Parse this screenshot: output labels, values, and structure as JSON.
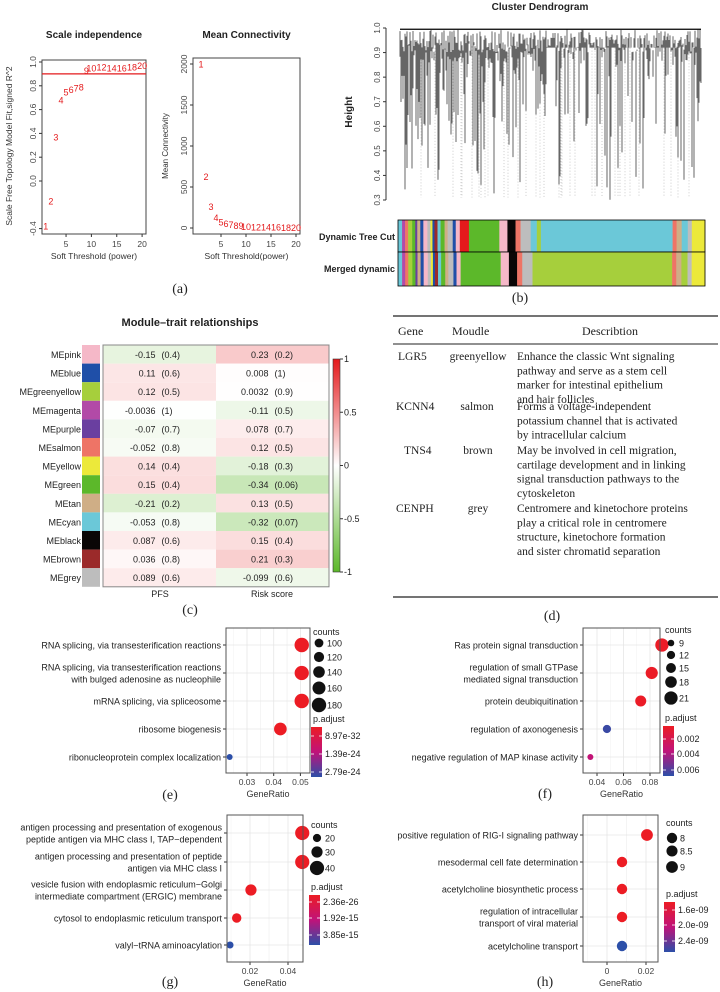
{
  "panel_labels": {
    "a": "(a)",
    "b": "(b)",
    "c": "(c)",
    "d": "(d)",
    "e": "(e)",
    "f": "(f)",
    "g": "(g)",
    "h": "(h)"
  },
  "chart_data": [
    {
      "id": "a1",
      "type": "scatter",
      "title": "Scale independence",
      "xlabel": "Soft Threshold (power)",
      "ylabel": "Scale Free Topology Model Fit,signed R^2",
      "xlim": [
        1,
        20.5
      ],
      "ylim": [
        -0.4,
        1.0
      ],
      "xticks": [
        "5",
        "10",
        "15",
        "20"
      ],
      "yticks": [
        "-0.4",
        "0.0",
        "0.2",
        "0.4",
        "0.6",
        "0.8",
        "1.0"
      ],
      "hline": 0.9,
      "color": "#e41a1c",
      "powers": [
        "1",
        "2",
        "3",
        "4",
        "5",
        "6",
        "7",
        "8",
        "9",
        "10",
        "12",
        "14",
        "16",
        "18",
        "20"
      ],
      "values": [
        -0.38,
        -0.17,
        0.37,
        0.68,
        0.75,
        0.77,
        0.78,
        0.79,
        0.93,
        0.95,
        0.96,
        0.95,
        0.95,
        0.96,
        0.97
      ]
    },
    {
      "id": "a2",
      "type": "scatter",
      "title": "Mean Connectivity",
      "xlabel": "Soft Threshold(power)",
      "ylabel": "Mean Connectivity",
      "xlim": [
        1,
        20.5
      ],
      "ylim": [
        0,
        2000
      ],
      "xticks": [
        "5",
        "10",
        "15",
        "20"
      ],
      "yticks": [
        "0",
        "500",
        "1000",
        "1500",
        "2000"
      ],
      "color": "#e41a1c",
      "powers": [
        "1",
        "2",
        "3",
        "4",
        "5",
        "6",
        "7",
        "8",
        "9",
        "10",
        "12",
        "14",
        "16",
        "18",
        "20"
      ],
      "values": [
        2000,
        630,
        260,
        130,
        75,
        55,
        40,
        32,
        28,
        20,
        15,
        12,
        10,
        8,
        6
      ]
    },
    {
      "id": "b",
      "type": "dendrogram",
      "title": "Cluster Dendrogram",
      "ylabel": "Height",
      "ylim": [
        0.3,
        1.0
      ],
      "yticks": [
        "0.3",
        "0.4",
        "0.5",
        "0.6",
        "0.7",
        "0.8",
        "0.9",
        "1.0"
      ],
      "strips": [
        "Dynamic Tree Cut",
        "Merged dynamic"
      ]
    },
    {
      "id": "c",
      "type": "heatmap",
      "title": "Module–trait relationships",
      "columns": [
        "PFS",
        "Risk score"
      ],
      "colorbar_ticks": [
        "1",
        "0.5",
        "0",
        "-0.5",
        "-1"
      ],
      "colorbar_colors": {
        "positive": "#e41a1c",
        "zero": "#ffffff",
        "negative": "#5cb82a"
      },
      "rows": [
        {
          "module": "MEpink",
          "color": "#f5b8c8",
          "cells": [
            [
              -0.15,
              "-0.15",
              "(0.4)"
            ],
            [
              0.23,
              "0.23",
              "(0.2)"
            ]
          ]
        },
        {
          "module": "MEblue",
          "color": "#1f4fa8",
          "cells": [
            [
              0.11,
              "0.11",
              "(0.6)"
            ],
            [
              0.008,
              "0.008",
              "(1)"
            ]
          ]
        },
        {
          "module": "MEgreenyellow",
          "color": "#a6cf3c",
          "cells": [
            [
              0.12,
              "0.12",
              "(0.5)"
            ],
            [
              0.0032,
              "0.0032",
              "(0.9)"
            ]
          ]
        },
        {
          "module": "MEmagenta",
          "color": "#b24aa7",
          "cells": [
            [
              -0.0036,
              "-0.0036",
              "(1)"
            ],
            [
              -0.11,
              "-0.11",
              "(0.5)"
            ]
          ]
        },
        {
          "module": "MEpurple",
          "color": "#6a3fa0",
          "cells": [
            [
              -0.07,
              "-0.07",
              "(0.7)"
            ],
            [
              0.078,
              "0.078",
              "(0.7)"
            ]
          ]
        },
        {
          "module": "MEsalmon",
          "color": "#ee7466",
          "cells": [
            [
              -0.052,
              "-0.052",
              "(0.8)"
            ],
            [
              0.12,
              "0.12",
              "(0.5)"
            ]
          ]
        },
        {
          "module": "MEyellow",
          "color": "#ece93a",
          "cells": [
            [
              0.14,
              "0.14",
              "(0.4)"
            ],
            [
              -0.18,
              "-0.18",
              "(0.3)"
            ]
          ]
        },
        {
          "module": "MEgreen",
          "color": "#5cb82a",
          "cells": [
            [
              0.15,
              "0.15",
              "(0.4)"
            ],
            [
              -0.34,
              "-0.34",
              "(0.06)"
            ]
          ]
        },
        {
          "module": "MEtan",
          "color": "#cfae86",
          "cells": [
            [
              -0.21,
              "-0.21",
              "(0.2)"
            ],
            [
              0.13,
              "0.13",
              "(0.5)"
            ]
          ]
        },
        {
          "module": "MEcyan",
          "color": "#6bc8d8",
          "cells": [
            [
              -0.053,
              "-0.053",
              "(0.8)"
            ],
            [
              -0.32,
              "-0.32",
              "(0.07)"
            ]
          ]
        },
        {
          "module": "MEblack",
          "color": "#0a0606",
          "cells": [
            [
              0.087,
              "0.087",
              "(0.6)"
            ],
            [
              0.15,
              "0.15",
              "(0.4)"
            ]
          ]
        },
        {
          "module": "MEbrown",
          "color": "#9b2a2a",
          "cells": [
            [
              0.036,
              "0.036",
              "(0.8)"
            ],
            [
              0.21,
              "0.21",
              "(0.3)"
            ]
          ]
        },
        {
          "module": "MEgrey",
          "color": "#bdbdbd",
          "cells": [
            [
              0.089,
              "0.089",
              "(0.6)"
            ],
            [
              -0.099,
              "-0.099",
              "(0.6)"
            ]
          ]
        }
      ]
    },
    {
      "id": "d",
      "type": "table",
      "headers": [
        "Gene",
        "Moudle",
        "Describtion"
      ],
      "rows": [
        {
          "gene": "LGR5",
          "module": "greenyellow",
          "desc": [
            "Enhance the classic Wnt signaling",
            "pathway and serve as a stem cell",
            "marker for intestinal epithelium",
            "and hair follicles"
          ]
        },
        {
          "gene": "KCNN4",
          "module": "salmon",
          "desc": [
            "Forms a voltage-independent",
            "potassium channel that is activated",
            "by intracellular calcium"
          ]
        },
        {
          "gene": "TNS4",
          "module": "brown",
          "desc": [
            "May be involved in cell migration,",
            "cartilage development and in linking",
            "signal transduction pathways to the",
            "cytoskeleton"
          ]
        },
        {
          "gene": "CENPH",
          "module": "grey",
          "desc": [
            "Centromere and kinetochore proteins",
            "play a critical role in centromere",
            "structure, kinetochore formation",
            "and sister chromatid separation"
          ]
        }
      ]
    },
    {
      "id": "e",
      "type": "scatter",
      "xlabel": "GeneRatio",
      "xticks": [
        0.03,
        0.04,
        0.05
      ],
      "xtick_labels": [
        "0.03",
        "0.04",
        "0.05"
      ],
      "size_title": "counts",
      "size_legend": [
        "100",
        "120",
        "140",
        "160",
        "180"
      ],
      "size_values": [
        100,
        120,
        140,
        160,
        180
      ],
      "color_title": "p.adjust",
      "color_legend": [
        "8.97e-32",
        "1.39e-24",
        "2.79e-24"
      ],
      "color_range": [
        8.97e-32,
        2.79e-24
      ],
      "terms": [
        {
          "label": [
            "RNA splicing, via transesterification reactions"
          ],
          "x": 0.0505,
          "count": 180,
          "p": 8.97e-32
        },
        {
          "label": [
            "RNA splicing, via transesterification reactions",
            "with bulged adenosine as nucleophile"
          ],
          "x": 0.0505,
          "count": 178,
          "p": 8.97e-32
        },
        {
          "label": [
            "mRNA splicing, via spliceosome"
          ],
          "x": 0.0505,
          "count": 180,
          "p": 8.97e-32
        },
        {
          "label": [
            "ribosome biogenesis"
          ],
          "x": 0.0425,
          "count": 155,
          "p": 8.97e-32
        },
        {
          "label": [
            "ribonucleoprotein complex localization"
          ],
          "x": 0.0235,
          "count": 60,
          "p": 2.79e-24
        }
      ]
    },
    {
      "id": "f",
      "type": "scatter",
      "xlabel": "GeneRatio",
      "xticks": [
        0.04,
        0.06,
        0.08
      ],
      "xtick_labels": [
        "0.04",
        "0.06",
        "0.08"
      ],
      "size_title": "counts",
      "size_legend": [
        "9",
        "12",
        "15",
        "18",
        "21"
      ],
      "size_values": [
        9,
        12,
        15,
        18,
        21
      ],
      "color_title": "p.adjust",
      "color_legend": [
        "0.002",
        "0.004",
        "0.006"
      ],
      "color_range": [
        0.0005,
        0.0068
      ],
      "color_legend_values": [
        0.002,
        0.004,
        0.006
      ],
      "terms": [
        {
          "label": [
            "Ras protein signal transduction"
          ],
          "x": 0.089,
          "count": 21,
          "p": 0.0006
        },
        {
          "label": [
            "regulation of small GTPase",
            "mediated signal transduction"
          ],
          "x": 0.0813,
          "count": 19,
          "p": 0.0006
        },
        {
          "label": [
            "protein deubiquitination"
          ],
          "x": 0.073,
          "count": 17,
          "p": 0.0006
        },
        {
          "label": [
            "regulation of axonogenesis"
          ],
          "x": 0.0475,
          "count": 12,
          "p": 0.0065
        },
        {
          "label": [
            "negative regulation of MAP kinase activity"
          ],
          "x": 0.035,
          "count": 8,
          "p": 0.0035
        }
      ]
    },
    {
      "id": "g",
      "type": "scatter",
      "xlabel": "GeneRatio",
      "xticks": [
        0.02,
        0.04
      ],
      "xtick_labels": [
        "0.02",
        "0.04"
      ],
      "size_title": "counts",
      "size_legend": [
        "20",
        "30",
        "40"
      ],
      "size_values": [
        20,
        30,
        40
      ],
      "color_title": "p.adjust",
      "color_legend": [
        "2.36e-26",
        "1.92e-15",
        "3.85e-15"
      ],
      "color_range": [
        2.36e-26,
        3.85e-15
      ],
      "terms": [
        {
          "label": [
            "antigen processing and presentation of exogenous",
            "peptide antigen via MHC class I, TAP−dependent"
          ],
          "x": 0.0475,
          "count": 40,
          "p": 2.36e-26
        },
        {
          "label": [
            "antigen processing and presentation of peptide",
            "antigen via MHC class I"
          ],
          "x": 0.0475,
          "count": 40,
          "p": 2.36e-26
        },
        {
          "label": [
            "vesicle fusion with endoplasmic reticulum−Golgi",
            "intermediate compartment (ERGIC) membrane"
          ],
          "x": 0.0205,
          "count": 30,
          "p": 2.36e-26
        },
        {
          "label": [
            "cytosol to endoplasmic reticulum transport"
          ],
          "x": 0.013,
          "count": 24,
          "p": 2.36e-26
        },
        {
          "label": [
            "valyl−tRNA aminoacylation"
          ],
          "x": 0.0095,
          "count": 16,
          "p": 3.85e-15
        }
      ]
    },
    {
      "id": "h",
      "type": "scatter",
      "xlabel": "GeneRatio",
      "xticks": [
        0,
        0.02
      ],
      "xtick_labels": [
        "0",
        "0.02"
      ],
      "size_title": "counts",
      "size_legend": [
        "8",
        "8.5",
        "9"
      ],
      "size_values": [
        8,
        8.5,
        9
      ],
      "color_title": "p.adjust",
      "color_legend": [
        "1.6e-09",
        "2.0e-09",
        "2.4e-09"
      ],
      "color_range": [
        1.5e-09,
        2.6e-09
      ],
      "color_legend_values": [
        1.6e-09,
        2e-09,
        2.4e-09
      ],
      "terms": [
        {
          "label": [
            "positive regulation of RIG-I signaling pathway"
          ],
          "x": 0.0205,
          "count": 9,
          "p": 1.5e-09
        },
        {
          "label": [
            "mesodermal cell fate determination"
          ],
          "x": 0.0077,
          "count": 8,
          "p": 1.5e-09
        },
        {
          "label": [
            "acetylcholine biosynthetic process"
          ],
          "x": 0.0077,
          "count": 8,
          "p": 1.5e-09
        },
        {
          "label": [
            "regulation of intracellular",
            "transport of viral material"
          ],
          "x": 0.0077,
          "count": 8,
          "p": 1.5e-09
        },
        {
          "label": [
            "acetylcholine transport"
          ],
          "x": 0.0077,
          "count": 8,
          "p": 2.6e-09
        }
      ]
    }
  ]
}
